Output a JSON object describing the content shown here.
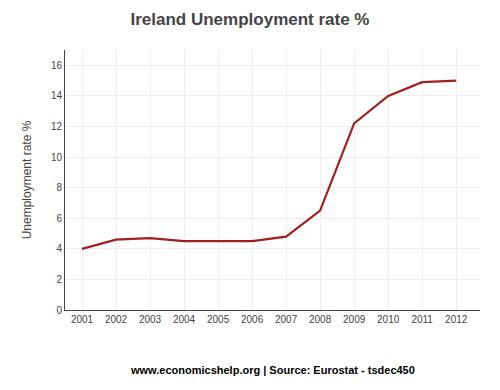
{
  "chart_data": {
    "type": "line",
    "title": "Ireland Unemployment rate %",
    "ylabel": "Unemployment rate %",
    "annotations": [
      "www.economicshelp.org | Source: Eurostat - tsdec450"
    ],
    "x": [
      2001,
      2002,
      2003,
      2004,
      2005,
      2006,
      2007,
      2008,
      2009,
      2010,
      2011,
      2012
    ],
    "values": [
      4.0,
      4.6,
      4.7,
      4.5,
      4.5,
      4.5,
      4.8,
      6.5,
      12.2,
      14.0,
      14.9,
      15.0
    ],
    "color": "#a02020",
    "xlim": [
      2000.5,
      2012.7
    ],
    "xticks": [
      2001,
      2002,
      2003,
      2004,
      2005,
      2006,
      2007,
      2008,
      2009,
      2010,
      2011,
      2012
    ],
    "ylim": [
      0,
      17
    ],
    "yticks": [
      0,
      2,
      4,
      6,
      8,
      10,
      12,
      14,
      16
    ],
    "grid": true
  }
}
